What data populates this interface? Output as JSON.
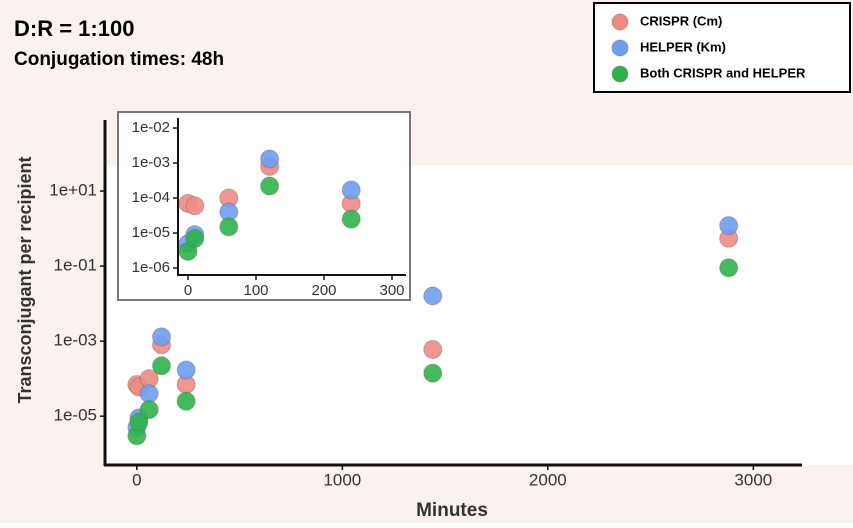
{
  "chart_data": {
    "type": "scatter",
    "title": "D:R = 1:100",
    "subtitle": "Conjugation times: 48h",
    "x_label": "Minutes",
    "y_label": "Transconjugant per recipient",
    "ylog": true,
    "xlim": [
      -155,
      3230
    ],
    "ylim": [
      5e-07,
      1000
    ],
    "xticks": [
      0,
      1000,
      2000,
      3000
    ],
    "yticks": [
      {
        "value": 10,
        "label": "1e+01"
      },
      {
        "value": 0.1,
        "label": "1e-01"
      },
      {
        "value": 0.001,
        "label": "1e-03"
      },
      {
        "value": 1e-05,
        "label": "1e-05"
      }
    ],
    "legend": "top-right",
    "series": [
      {
        "name": "CRISPR (Cm)",
        "color": "#f08a84",
        "x": [
          0,
          10,
          60,
          120,
          240,
          1440,
          2880
        ],
        "values": [
          7e-05,
          6e-05,
          0.0001,
          0.0008,
          7e-05,
          0.0006,
          0.55
        ]
      },
      {
        "name": "HELPER (Km)",
        "color": "#6f9ff0",
        "x": [
          0,
          10,
          60,
          120,
          240,
          1440,
          2880
        ],
        "values": [
          5e-06,
          9e-06,
          4e-05,
          0.0013,
          0.00017,
          0.016,
          1.2
        ]
      },
      {
        "name": "Both CRISPR and HELPER",
        "color": "#2fb24a",
        "x": [
          0,
          10,
          60,
          120,
          240,
          1440,
          2880
        ],
        "values": [
          3e-06,
          7e-06,
          1.5e-05,
          0.00022,
          2.5e-05,
          0.00014,
          0.09
        ]
      }
    ],
    "inset": {
      "xlim": [
        -15,
        320
      ],
      "ylim": [
        6e-07,
        0.02
      ],
      "xticks": [
        0,
        100,
        200,
        300
      ],
      "yticks": [
        {
          "value": 0.01,
          "label": "1e-02"
        },
        {
          "value": 0.001,
          "label": "1e-03"
        },
        {
          "value": 0.0001,
          "label": "1e-04"
        },
        {
          "value": 1e-05,
          "label": "1e-05"
        },
        {
          "value": 1e-06,
          "label": "1e-06"
        }
      ]
    }
  }
}
